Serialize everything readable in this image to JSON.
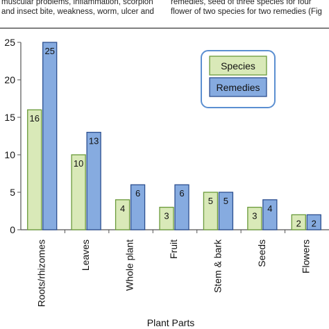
{
  "header_text": {
    "left_lines": [
      "muscular problems, inflammation, scorpion",
      "and insect bite, weakness, worm, ulcer and"
    ],
    "right_lines": [
      "remedies, seed of three species for four",
      "flower of two species for two remedies (Fig"
    ]
  },
  "chart_data": {
    "type": "bar",
    "title": "",
    "xlabel": "Plant Parts",
    "ylabel": "",
    "ylim": [
      0,
      25
    ],
    "yticks": [
      0,
      5,
      10,
      15,
      20,
      25
    ],
    "grid": false,
    "legend_position": "top-right",
    "categories": [
      "Roots/rhizomes",
      "Leaves",
      "Whole plant",
      "Fruit",
      "Stem & bark",
      "Seeds",
      "Flowers"
    ],
    "series": [
      {
        "name": "Species",
        "values": [
          16,
          10,
          4,
          3,
          5,
          3,
          2
        ],
        "color": "#d9e9b8",
        "stroke": "#6a9a3a"
      },
      {
        "name": "Remedies",
        "values": [
          25,
          13,
          6,
          6,
          5,
          4,
          2
        ],
        "color": "#86abe0",
        "stroke": "#2c4f8f"
      }
    ],
    "legend_frame_color": "#5b8fd1"
  }
}
